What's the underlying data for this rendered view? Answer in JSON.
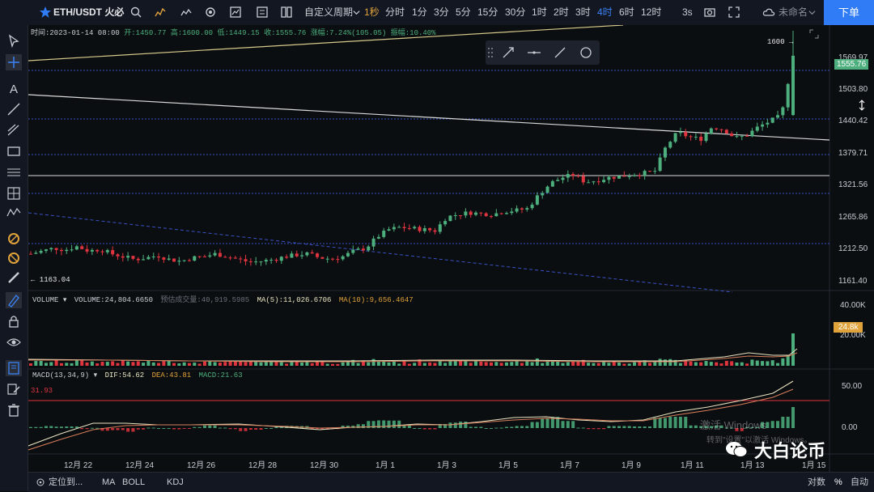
{
  "toolbar": {
    "symbol": "ETH/USDT 火必",
    "custom_period": "自定义周期",
    "periods": [
      "1秒",
      "分时",
      "1分",
      "3分",
      "5分",
      "15分",
      "30分",
      "1时",
      "2时",
      "3时",
      "4时",
      "6时",
      "12时"
    ],
    "active_period": "4时",
    "seconds_label": "3s",
    "layout_name": "未命名",
    "order_button": "下单"
  },
  "ohlc": {
    "time": "时间:2023-01-14 08:00",
    "open": "开:1450.77",
    "high": "高:1600.00",
    "low": "低:1449.15",
    "close": "收:1555.76",
    "change": "涨幅:7.24%(105.05)",
    "amplitude": "振幅:10.40%"
  },
  "price_axis": {
    "ticks": [
      "1569.97",
      "1503.80",
      "1440.42",
      "1379.71",
      "1321.56",
      "1265.86",
      "1212.50",
      "1161.40"
    ],
    "current": "1555.76",
    "high_marker": "1600 →",
    "low_marker": "← 1163.04"
  },
  "volume_legend": {
    "name": "VOLUME",
    "value": "VOLUME:24,804.6650",
    "estimate": "预估成交量:40,919.5985",
    "ma5": "MA(5):11,026.6706",
    "ma10": "MA(10):9,656.4647",
    "ticks": [
      "40.00K",
      "20.00K"
    ],
    "current": "24.8k"
  },
  "macd_legend": {
    "name": "MACD(13,34,9)",
    "dif": "DIF:54.62",
    "dea": "DEA:43.81",
    "macd": "MACD:21.63",
    "ticks": [
      "50.00",
      "0.00"
    ],
    "level": "31.93"
  },
  "date_axis": [
    "12月 22",
    "12月 24",
    "12月 26",
    "12月 28",
    "12月 30",
    "1月 1",
    "1月 3",
    "1月 5",
    "1月 7",
    "1月 9",
    "1月 11",
    "1月 13",
    "1月 15"
  ],
  "bottom": {
    "locate": "定位到...",
    "ma": "MA",
    "boll": "BOLL",
    "kdj": "KDJ",
    "log": "对数",
    "percent": "%",
    "auto": "自动"
  },
  "watermark": {
    "line1": "激活 Windows",
    "line2": "转到\"设置\"以激活 Windows。"
  },
  "brand": "大白论币",
  "colors": {
    "up": "#4caf7d",
    "down": "#e0343f",
    "accent": "#2f7cf6",
    "dif": "#e8e3c0",
    "dea": "#d47d5a"
  },
  "chart_data": {
    "type": "candlestick",
    "timeframe": "4h",
    "x": [
      "2022-12-21",
      "2023-01-15"
    ],
    "price_range": [
      1140,
      1610
    ],
    "last_candle": {
      "open": 1450.77,
      "high": 1600.0,
      "low": 1449.15,
      "close": 1555.76
    },
    "path_closes": [
      1205,
      1210,
      1215,
      1212,
      1218,
      1210,
      1213,
      1205,
      1200,
      1195,
      1198,
      1202,
      1195,
      1192,
      1198,
      1200,
      1205,
      1200,
      1195,
      1190,
      1192,
      1195,
      1200,
      1203,
      1205,
      1198,
      1196,
      1200,
      1210,
      1215,
      1235,
      1248,
      1252,
      1250,
      1248,
      1246,
      1270,
      1275,
      1278,
      1276,
      1275,
      1280,
      1282,
      1285,
      1310,
      1330,
      1340,
      1345,
      1332,
      1335,
      1340,
      1342,
      1345,
      1348,
      1350,
      1395,
      1420,
      1412,
      1408,
      1430,
      1425,
      1410,
      1415,
      1430,
      1440,
      1450,
      1555.76
    ]
  }
}
